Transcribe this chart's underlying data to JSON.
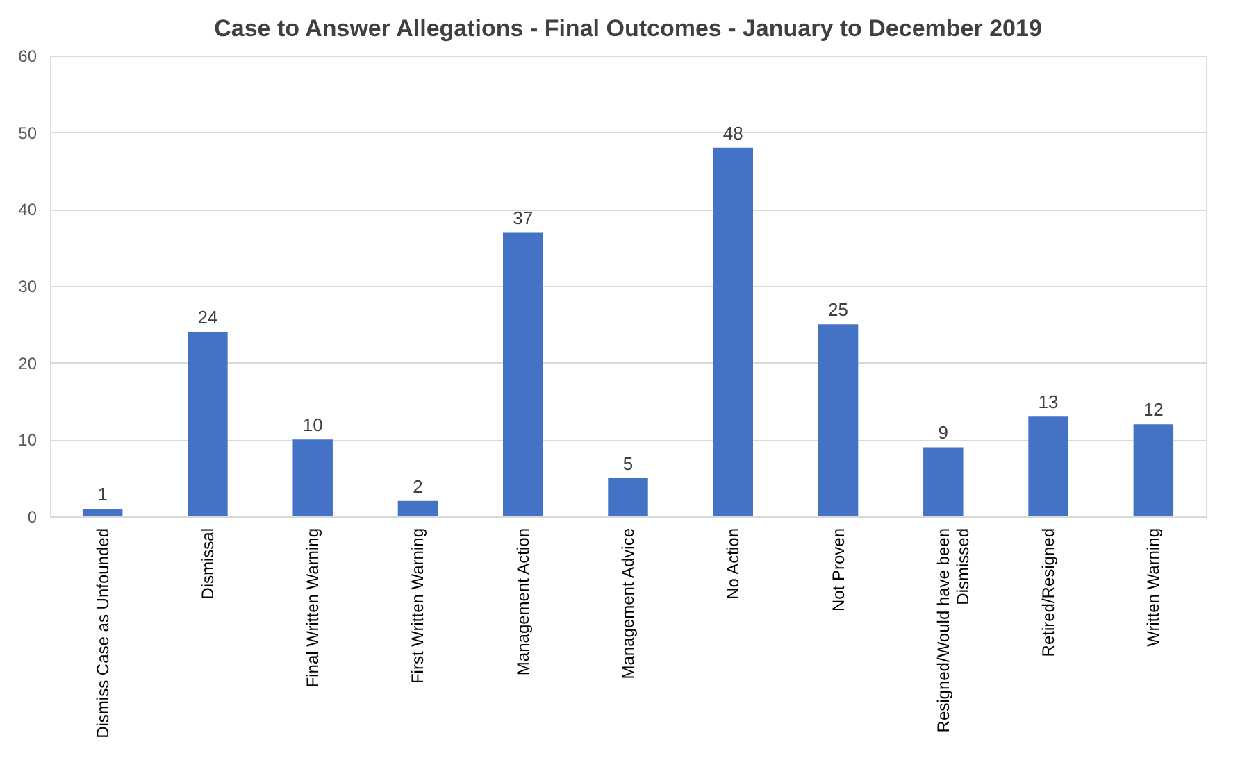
{
  "chart_data": {
    "type": "bar",
    "title": "Case to Answer Allegations - Final Outcomes - January to December 2019",
    "categories": [
      "Dismiss Case as Unfounded",
      "Dismissal",
      "Final Written Warning",
      "First Written Warning",
      "Management Action",
      "Management Advice",
      "No Action",
      "Not Proven",
      "Resigned/Would have been Dismissed",
      "Retired/Resigned",
      "Written Warning"
    ],
    "values": [
      1,
      24,
      10,
      2,
      37,
      5,
      48,
      25,
      9,
      13,
      12
    ],
    "color": "#4472c4",
    "ylim": [
      0,
      60
    ],
    "yticks": [
      0,
      10,
      20,
      30,
      40,
      50,
      60
    ],
    "grid": "y",
    "data_labels": true
  }
}
